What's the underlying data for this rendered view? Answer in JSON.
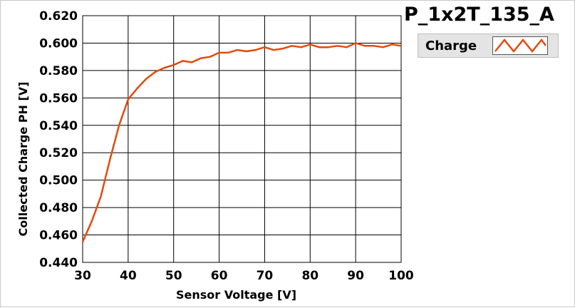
{
  "window": {
    "title": "P_1x2T_135_A"
  },
  "legend": {
    "items": [
      {
        "label": "Charge",
        "color": "#e24a0e",
        "icon": "zigzag-line-icon"
      }
    ]
  },
  "chart_data": {
    "type": "line",
    "title": "P_1x2T_135_A",
    "xlabel": "Sensor Voltage [V]",
    "ylabel": "Collected Charge PH [V]",
    "xlim": [
      30,
      100
    ],
    "ylim": [
      0.44,
      0.62
    ],
    "xticks": [
      30,
      40,
      50,
      60,
      70,
      80,
      90,
      100
    ],
    "yticks": [
      "0.440",
      "0.460",
      "0.480",
      "0.500",
      "0.520",
      "0.540",
      "0.560",
      "0.580",
      "0.600",
      "0.620"
    ],
    "grid": true,
    "legend_position": "top-right",
    "series": [
      {
        "name": "Charge",
        "color": "#e24a0e",
        "x": [
          30,
          32,
          34,
          36,
          38,
          40,
          42,
          44,
          46,
          48,
          50,
          52,
          54,
          56,
          58,
          60,
          62,
          64,
          66,
          68,
          70,
          72,
          74,
          76,
          78,
          80,
          82,
          84,
          86,
          88,
          90,
          92,
          94,
          96,
          98,
          100
        ],
        "y": [
          0.455,
          0.47,
          0.488,
          0.515,
          0.54,
          0.559,
          0.567,
          0.574,
          0.579,
          0.582,
          0.584,
          0.587,
          0.586,
          0.589,
          0.59,
          0.593,
          0.593,
          0.595,
          0.594,
          0.595,
          0.597,
          0.595,
          0.596,
          0.598,
          0.597,
          0.599,
          0.597,
          0.597,
          0.598,
          0.597,
          0.6,
          0.598,
          0.598,
          0.597,
          0.599,
          0.598
        ]
      }
    ]
  }
}
